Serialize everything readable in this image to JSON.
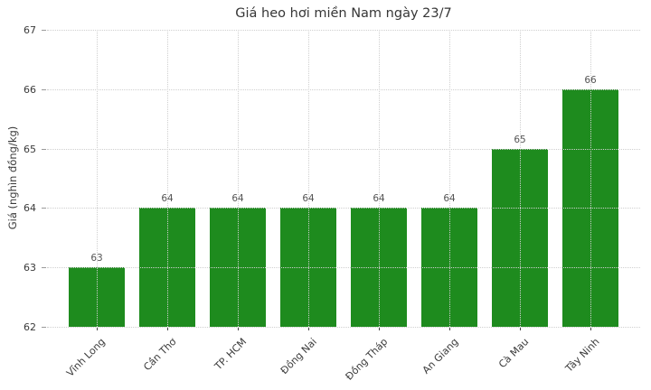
{
  "chart_data": {
    "type": "bar",
    "title": "Giá heo hơi miền Nam ngày 23/7",
    "xlabel": "",
    "ylabel": "Giá (nghìn đồng/kg)",
    "categories": [
      "Vĩnh Long",
      "Cần Thơ",
      "TP. HCM",
      "Đồng Nai",
      "Đồng Tháp",
      "An Giang",
      "Cà Mau",
      "Tây Ninh"
    ],
    "values": [
      63,
      64,
      64,
      64,
      64,
      64,
      65,
      66
    ],
    "ylim": [
      62,
      67
    ],
    "yticks": [
      62,
      63,
      64,
      65,
      66,
      67
    ],
    "grid": true,
    "legend": false,
    "bar_color": "#1e8b1e",
    "grid_color": "#cfcfcf",
    "text_color": "#3a3a3a",
    "value_label_color": "#555555",
    "background_color": "#ffffff"
  }
}
